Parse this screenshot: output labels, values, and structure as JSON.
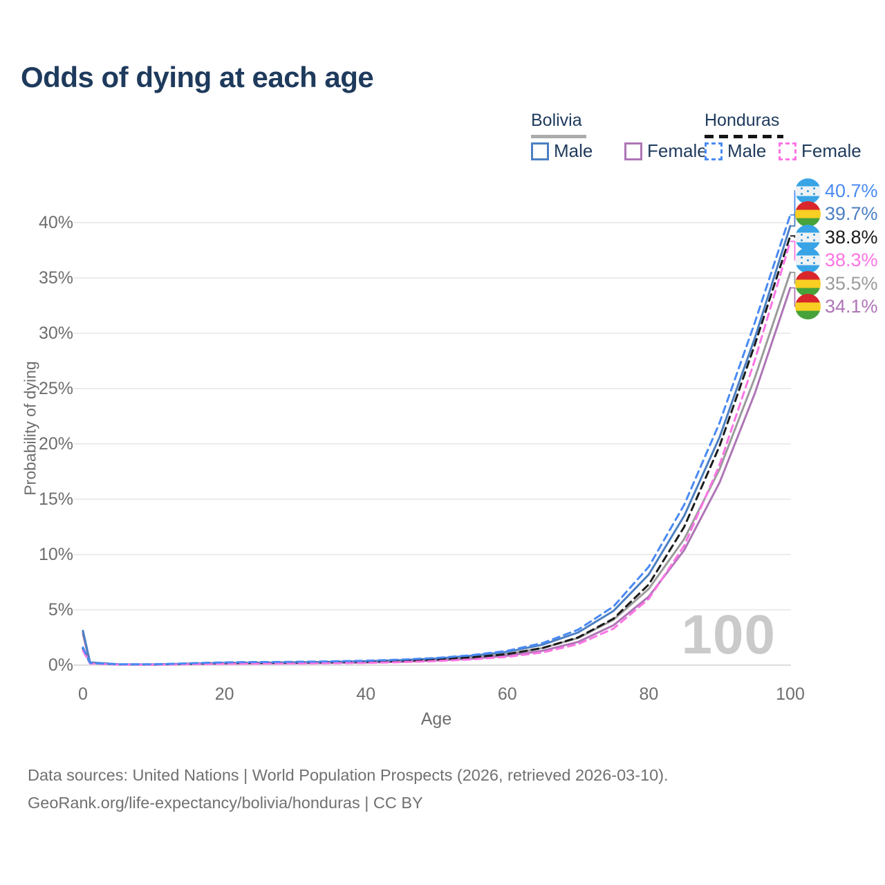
{
  "title": "Odds of dying at each age",
  "legend": {
    "bolivia": {
      "label": "Bolivia",
      "male": "Male",
      "female": "Female"
    },
    "honduras": {
      "label": "Honduras",
      "male": "Male",
      "female": "Female"
    }
  },
  "y_axis": {
    "title": "Probability of dying",
    "ticks": [
      {
        "label": "40%",
        "value": 40
      },
      {
        "label": "35%",
        "value": 35
      },
      {
        "label": "30%",
        "value": 30
      },
      {
        "label": "25%",
        "value": 25
      },
      {
        "label": "20%",
        "value": 20
      },
      {
        "label": "15%",
        "value": 15
      },
      {
        "label": "10%",
        "value": 10
      },
      {
        "label": "5%",
        "value": 5
      },
      {
        "label": "0%",
        "value": 0
      }
    ]
  },
  "x_axis": {
    "title": "Age",
    "ticks": [
      {
        "label": "0",
        "value": 0
      },
      {
        "label": "20",
        "value": 20
      },
      {
        "label": "40",
        "value": 40
      },
      {
        "label": "60",
        "value": 60
      },
      {
        "label": "80",
        "value": 80
      },
      {
        "label": "100",
        "value": 100
      }
    ]
  },
  "watermark_age": "100",
  "colors": {
    "bolivia-male": "#4c7fc2",
    "bolivia-female": "#ae75b6",
    "bolivia-both": "#9b9b9b",
    "honduras-male": "#4a8af4",
    "honduras-female": "#fc74e4",
    "honduras-both": "#1b1b1b",
    "title_text": "#1e3a5c",
    "axis_text": "#6e6e6e",
    "gridline": "#ececec",
    "zero_gridline": "#dcdcdc",
    "watermark": "#cacaca"
  },
  "end_labels": [
    {
      "text": "40.7%",
      "flag": "honduras",
      "series": "honduras-male"
    },
    {
      "text": "39.7%",
      "flag": "bolivia",
      "series": "bolivia-male"
    },
    {
      "text": "38.8%",
      "flag": "honduras",
      "series": "honduras-both"
    },
    {
      "text": "38.3%",
      "flag": "honduras",
      "series": "honduras-female"
    },
    {
      "text": "35.5%",
      "flag": "bolivia",
      "series": "bolivia-both"
    },
    {
      "text": "34.1%",
      "flag": "bolivia",
      "series": "bolivia-female"
    }
  ],
  "footer": {
    "line1": "Data sources: United Nations | World Population Prospects (2026, retrieved 2026-03-10).",
    "line2": "GeoRank.org/life-expectancy/bolivia/honduras | CC BY"
  },
  "chart_data": {
    "type": "line",
    "title": "Odds of dying at each age",
    "xlabel": "Age",
    "ylabel": "Probability of dying",
    "unit": "%",
    "xlim": [
      0,
      100
    ],
    "ylim": [
      0,
      43.75
    ],
    "grid": "horizontal",
    "legend_position": "top-right",
    "x": [
      0,
      1,
      5,
      10,
      20,
      30,
      40,
      45,
      50,
      55,
      60,
      65,
      70,
      75,
      80,
      85,
      90,
      95,
      100
    ],
    "series": [
      {
        "id": "bolivia-both",
        "name": "Bolivia (both sexes)",
        "country": "Bolivia",
        "sex": "Both",
        "line": "solid",
        "end_value": 35.5,
        "values": [
          3.0,
          0.22,
          0.07,
          0.06,
          0.17,
          0.21,
          0.3,
          0.38,
          0.5,
          0.7,
          1.0,
          1.55,
          2.45,
          4.1,
          6.9,
          11.4,
          17.7,
          26.0,
          35.5
        ]
      },
      {
        "id": "bolivia-female",
        "name": "Bolivia Female",
        "country": "Bolivia",
        "sex": "Female",
        "line": "solid",
        "end_value": 34.1,
        "values": [
          2.8,
          0.2,
          0.06,
          0.05,
          0.13,
          0.17,
          0.24,
          0.3,
          0.42,
          0.58,
          0.85,
          1.3,
          2.1,
          3.6,
          6.2,
          10.4,
          16.5,
          24.6,
          34.1
        ]
      },
      {
        "id": "bolivia-male",
        "name": "Bolivia Male",
        "country": "Bolivia",
        "sex": "Male",
        "line": "solid",
        "end_value": 39.7,
        "values": [
          3.1,
          0.25,
          0.08,
          0.07,
          0.2,
          0.25,
          0.35,
          0.45,
          0.6,
          0.85,
          1.2,
          1.85,
          2.95,
          4.9,
          8.2,
          13.5,
          20.6,
          29.6,
          39.7
        ]
      },
      {
        "id": "honduras-both",
        "name": "Honduras (both sexes)",
        "country": "Honduras",
        "sex": "Both",
        "line": "dashed",
        "end_value": 38.8,
        "values": [
          1.5,
          0.18,
          0.06,
          0.06,
          0.18,
          0.22,
          0.3,
          0.38,
          0.5,
          0.7,
          1.0,
          1.55,
          2.5,
          4.2,
          7.3,
          12.5,
          19.8,
          29.0,
          38.8
        ]
      },
      {
        "id": "honduras-female",
        "name": "Honduras Female",
        "country": "Honduras",
        "sex": "Female",
        "line": "dashed",
        "end_value": 38.3,
        "values": [
          1.3,
          0.15,
          0.05,
          0.05,
          0.12,
          0.15,
          0.2,
          0.27,
          0.37,
          0.52,
          0.75,
          1.15,
          1.9,
          3.3,
          6.0,
          10.8,
          18.1,
          27.6,
          38.3
        ]
      },
      {
        "id": "honduras-male",
        "name": "Honduras Male",
        "country": "Honduras",
        "sex": "Male",
        "line": "dashed",
        "end_value": 40.7,
        "values": [
          1.6,
          0.2,
          0.08,
          0.08,
          0.25,
          0.3,
          0.4,
          0.5,
          0.65,
          0.9,
          1.3,
          2.0,
          3.2,
          5.3,
          8.9,
          14.5,
          21.9,
          31.0,
          40.7
        ]
      }
    ]
  }
}
